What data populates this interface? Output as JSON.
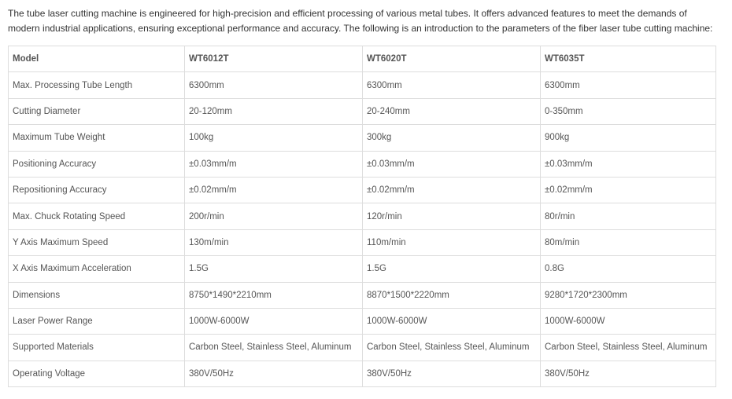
{
  "intro": "The tube laser cutting machine is engineered for high-precision and efficient processing of various metal tubes. It offers advanced features to meet the demands of modern industrial applications, ensuring exceptional performance and accuracy. The following is an introduction to the parameters of the fiber laser tube cutting machine:",
  "table": {
    "header": [
      "Model",
      "WT6012T",
      "WT6020T",
      "WT6035T"
    ],
    "rows": [
      [
        "Max. Processing Tube Length",
        "6300mm",
        "6300mm",
        "6300mm"
      ],
      [
        "Cutting Diameter",
        "20-120mm",
        "20-240mm",
        "0-350mm"
      ],
      [
        "Maximum Tube Weight",
        "100kg",
        "300kg",
        "900kg"
      ],
      [
        "Positioning Accuracy",
        "±0.03mm/m",
        "±0.03mm/m",
        "±0.03mm/m"
      ],
      [
        "Repositioning Accuracy",
        "±0.02mm/m",
        "±0.02mm/m",
        "±0.02mm/m"
      ],
      [
        "Max. Chuck Rotating Speed",
        "200r/min",
        "120r/min",
        "80r/min"
      ],
      [
        "Y Axis Maximum Speed",
        "130m/min",
        "110m/min",
        "80m/min"
      ],
      [
        "X Axis Maximum Acceleration",
        "1.5G",
        "1.5G",
        "0.8G"
      ],
      [
        "Dimensions",
        "8750*1490*2210mm",
        "8870*1500*2220mm",
        "9280*1720*2300mm"
      ],
      [
        "Laser Power Range",
        "1000W-6000W",
        "1000W-6000W",
        "1000W-6000W"
      ],
      [
        "Supported Materials",
        "Carbon Steel, Stainless Steel, Aluminum",
        "Carbon Steel, Stainless Steel, Aluminum",
        "Carbon Steel, Stainless Steel, Aluminum"
      ],
      [
        "Operating Voltage",
        "380V/50Hz",
        "380V/50Hz",
        "380V/50Hz"
      ]
    ]
  }
}
